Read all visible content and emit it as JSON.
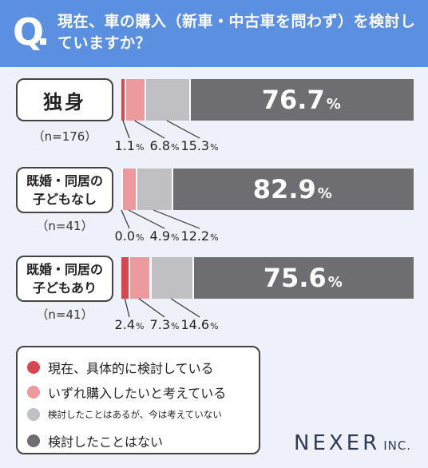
{
  "header": {
    "q_mark": "Q",
    "question": "現在、車の購入（新車・中古車を問わず）を検討していますか？"
  },
  "chart_data": {
    "type": "bar",
    "stacked": true,
    "orientation": "horizontal",
    "unit": "%",
    "xlim": [
      0,
      100
    ],
    "categories": [
      {
        "label": "独身",
        "n": "（n=176）"
      },
      {
        "label": "既婚・同居の子どもなし",
        "n": "（n=41）"
      },
      {
        "label": "既婚・同居の子どもあり",
        "n": "（n=41）"
      }
    ],
    "series": [
      {
        "name": "現在、具体的に検討している",
        "color": "#d9474e",
        "values": [
          1.1,
          0.0,
          2.4
        ],
        "labels": [
          "1.1",
          "0.0",
          "2.4"
        ]
      },
      {
        "name": "いずれ購入したいと考えている",
        "color": "#ec9a9e",
        "values": [
          6.8,
          4.9,
          7.3
        ],
        "labels": [
          "6.8",
          "4.9",
          "7.3"
        ]
      },
      {
        "name": "検討したことはあるが、今は考えていない",
        "color": "#c0bfc3",
        "values": [
          15.3,
          12.2,
          14.6
        ],
        "labels": [
          "15.3",
          "12.2",
          "14.6"
        ]
      },
      {
        "name": "検討したことはない",
        "color": "#6e6e72",
        "values": [
          76.7,
          82.9,
          75.6
        ],
        "labels": [
          "76.7",
          "82.9",
          "75.6"
        ]
      }
    ],
    "percent_sign": "%",
    "legend_position": "bottom-left"
  },
  "brand": {
    "name": "NEXER",
    "suffix": "INC."
  }
}
